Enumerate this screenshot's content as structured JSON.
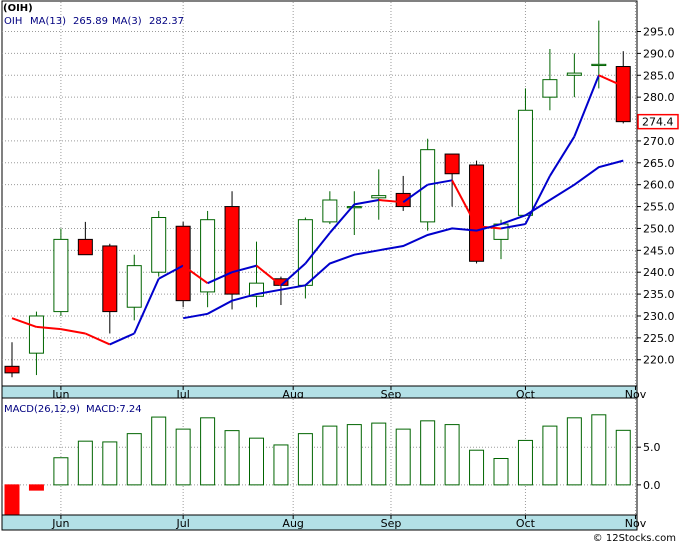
{
  "chart_data": [
    {
      "type": "candlestick",
      "title": "(OIH)",
      "legend": {
        "symbol": "OIH",
        "ma13_label": "MA(13)",
        "ma13_value": "265.89",
        "ma3_label": "MA(3)",
        "ma3_value": "282.37"
      },
      "last_price_label": "274.4",
      "ylim": [
        214,
        299
      ],
      "yticks": [
        220,
        225,
        230,
        235,
        240,
        245,
        250,
        255,
        260,
        265,
        270,
        275,
        280,
        285,
        290,
        295
      ],
      "ytick_labels": [
        "220.0",
        "225.0",
        "230.0",
        "235.0",
        "240.0",
        "245.0",
        "250.0",
        "255.0",
        "260.0",
        "265.0",
        "270.0",
        "275.0",
        "280.0",
        "285.0",
        "290.0",
        "295.0"
      ],
      "month_labels": [
        "Jun",
        "Jul",
        "Aug",
        "Sep",
        "Oct",
        "Nov"
      ],
      "month_positions": [
        2,
        7,
        11.5,
        15.5,
        21,
        25.5
      ],
      "candles": [
        {
          "o": 218.5,
          "h": 224.0,
          "l": 216.0,
          "c": 217.0
        },
        {
          "o": 221.5,
          "h": 231.0,
          "l": 216.5,
          "c": 230.0
        },
        {
          "o": 231.0,
          "h": 250.0,
          "l": 230.0,
          "c": 247.5
        },
        {
          "o": 247.5,
          "h": 251.5,
          "l": 244.0,
          "c": 244.0
        },
        {
          "o": 246.0,
          "h": 246.5,
          "l": 226.0,
          "c": 231.0
        },
        {
          "o": 232.0,
          "h": 244.0,
          "l": 229.0,
          "c": 241.5
        },
        {
          "o": 240.0,
          "h": 254.0,
          "l": 239.0,
          "c": 252.5
        },
        {
          "o": 250.5,
          "h": 251.5,
          "l": 232.0,
          "c": 233.5
        },
        {
          "o": 235.5,
          "h": 254.0,
          "l": 232.0,
          "c": 252.0
        },
        {
          "o": 255.0,
          "h": 258.5,
          "l": 231.5,
          "c": 235.0
        },
        {
          "o": 234.5,
          "h": 247.0,
          "l": 232.0,
          "c": 237.5
        },
        {
          "o": 238.5,
          "h": 239.0,
          "l": 232.5,
          "c": 237.0
        },
        {
          "o": 237.0,
          "h": 252.5,
          "l": 234.0,
          "c": 252.0
        },
        {
          "o": 251.5,
          "h": 258.5,
          "l": 251.0,
          "c": 256.5
        },
        {
          "o": 255.0,
          "h": 258.5,
          "l": 248.5,
          "c": 255.0
        },
        {
          "o": 257.0,
          "h": 263.5,
          "l": 252.0,
          "c": 257.5
        },
        {
          "o": 258.0,
          "h": 262.0,
          "l": 254.0,
          "c": 255.0
        },
        {
          "o": 251.5,
          "h": 270.5,
          "l": 249.5,
          "c": 268.0
        },
        {
          "o": 267.0,
          "h": 267.0,
          "l": 255.0,
          "c": 262.5
        },
        {
          "o": 264.5,
          "h": 265.5,
          "l": 242.0,
          "c": 242.5
        },
        {
          "o": 247.5,
          "h": 252.0,
          "l": 243.0,
          "c": 251.0
        },
        {
          "o": 253.0,
          "h": 282.0,
          "l": 253.0,
          "c": 277.0
        },
        {
          "o": 280.0,
          "h": 291.0,
          "l": 277.0,
          "c": 284.0
        },
        {
          "o": 285.0,
          "h": 290.0,
          "l": 280.0,
          "c": 285.5
        },
        {
          "o": 287.5,
          "h": 297.5,
          "l": 282.0,
          "c": 287.5
        },
        {
          "o": 287.0,
          "h": 290.5,
          "l": 274.0,
          "c": 274.4
        }
      ],
      "ma3": [
        229.5,
        227.5,
        227.0,
        226.0,
        223.5,
        226.0,
        238.5,
        241.5,
        237.5,
        240.0,
        241.5,
        237.0,
        242.0,
        249.0,
        255.5,
        256.5,
        256.0,
        260.0,
        261.0,
        250.5,
        250.0,
        251.0,
        262.0,
        271.0,
        285.0,
        282.5
      ],
      "ma13": [
        220.5,
        221.0,
        231.0,
        240.0,
        240.5,
        238.5,
        241.5,
        242.0,
        246.0,
        239.5,
        241.5,
        236.5,
        241.0,
        251.5,
        255.0,
        257.0,
        255.5,
        260.0,
        261.0,
        249.5,
        252.5,
        257.0,
        270.5,
        282.0,
        285.0,
        283.0
      ],
      "ma13_long": [
        null,
        null,
        null,
        null,
        null,
        null,
        null,
        229.5,
        230.5,
        233.5,
        235.0,
        236.0,
        237.0,
        242.0,
        244.0,
        245.0,
        246.0,
        248.5,
        250.0,
        249.5,
        251.0,
        253.0,
        256.5,
        260.0,
        264.0,
        265.5
      ]
    },
    {
      "type": "bar",
      "title": "MACD(26,12,9)",
      "value_label": "MACD:7.24",
      "ylim": [
        -4.0,
        11.0
      ],
      "yticks": [
        0.0,
        5.0
      ],
      "ytick_labels": [
        "0.0",
        "5.0"
      ],
      "values": [
        -4.0,
        -0.7,
        3.6,
        5.8,
        5.7,
        6.8,
        9.0,
        7.4,
        8.9,
        7.2,
        6.2,
        5.3,
        6.8,
        7.8,
        8.0,
        8.2,
        7.4,
        8.5,
        8.0,
        4.6,
        3.5,
        5.9,
        7.8,
        8.9,
        9.3,
        7.24
      ],
      "month_labels": [
        "Jun",
        "Jul",
        "Aug",
        "Sep",
        "Oct",
        "Nov"
      ],
      "month_positions": [
        2,
        7,
        11.5,
        15.5,
        21,
        25.5
      ]
    }
  ],
  "footer": {
    "copyright": "© 12Stocks.com"
  },
  "colors": {
    "up": "#006400",
    "down": "#ff0000",
    "ma13": "#0000cc",
    "ma3": "#ff0000",
    "axis_band": "#b3e0e6",
    "grid": "#9b9b9b",
    "header_text": "#000080",
    "price_box": "#ff0000"
  }
}
